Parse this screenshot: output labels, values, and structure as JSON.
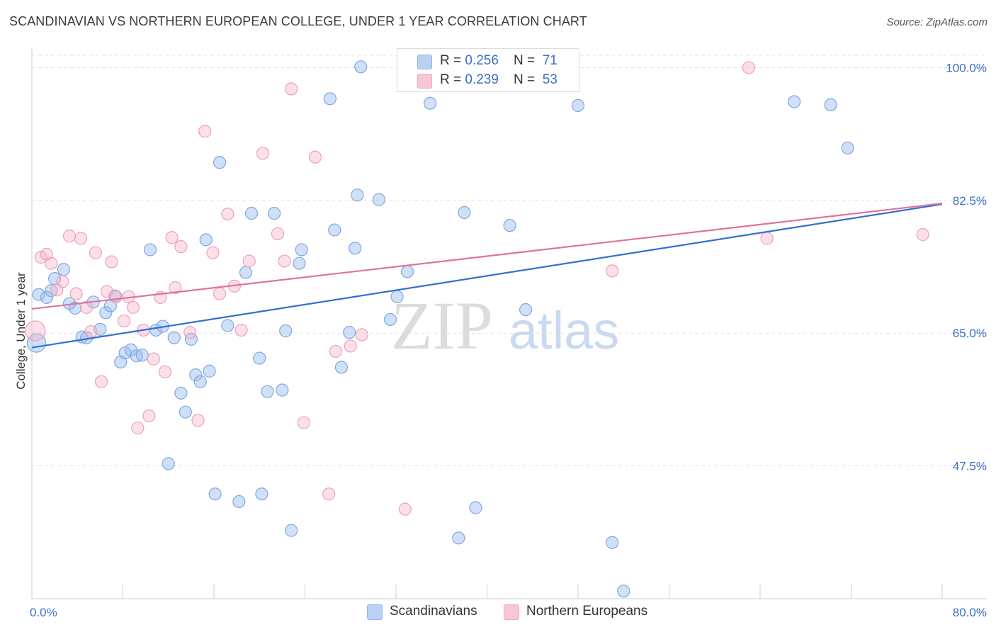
{
  "title": "SCANDINAVIAN VS NORTHERN EUROPEAN COLLEGE, UNDER 1 YEAR CORRELATION CHART",
  "source": "Source: ZipAtlas.com",
  "watermark": {
    "zip": "ZIP",
    "atlas": "atlas"
  },
  "legend": {
    "rows": [
      {
        "r_label": "R = ",
        "r_value": "0.256",
        "n_label": "N = ",
        "n_value": "71"
      },
      {
        "r_label": "R = ",
        "r_value": "0.239",
        "n_label": "N = ",
        "n_value": "53"
      }
    ]
  },
  "chart_data": {
    "type": "scatter",
    "title": "SCANDINAVIAN VS NORTHERN EUROPEAN COLLEGE, UNDER 1 YEAR CORRELATION CHART",
    "xlabel": "",
    "ylabel": "College, Under 1 year",
    "xlim": [
      0,
      80
    ],
    "ylim": [
      30,
      102
    ],
    "x_tick_labels": [
      "0.0%",
      "80.0%"
    ],
    "y_ticks": [
      47.5,
      65.0,
      82.5,
      100.0
    ],
    "y_tick_labels": [
      "47.5%",
      "65.0%",
      "82.5%",
      "100.0%"
    ],
    "grid": true,
    "legend_position": "bottom",
    "colors": {
      "Scandinavians": "#8fb6ec",
      "Northern Europeans": "#f2a9bf",
      "Scandinavians_line": "#3270d0",
      "Northern Europeans_line": "#e0739b",
      "axis_text": "#3b6fc7"
    },
    "series": [
      {
        "name": "Scandinavians",
        "trend": {
          "x0": 0,
          "y0": 63.1,
          "x1": 80,
          "y1": 82.0
        },
        "points": [
          [
            0.6,
            70.1
          ],
          [
            1.3,
            69.7
          ],
          [
            1.7,
            70.6
          ],
          [
            2.0,
            72.2
          ],
          [
            2.8,
            73.4
          ],
          [
            3.3,
            68.9
          ],
          [
            3.8,
            68.3
          ],
          [
            4.4,
            64.5
          ],
          [
            4.8,
            64.4
          ],
          [
            5.4,
            69.1
          ],
          [
            6.0,
            65.5
          ],
          [
            6.5,
            67.7
          ],
          [
            6.9,
            68.6
          ],
          [
            7.3,
            69.9
          ],
          [
            7.8,
            61.2
          ],
          [
            8.2,
            62.4
          ],
          [
            8.7,
            62.8
          ],
          [
            9.2,
            62.0
          ],
          [
            9.7,
            62.1
          ],
          [
            10.4,
            76.0
          ],
          [
            10.9,
            65.4
          ],
          [
            11.5,
            65.9
          ],
          [
            12.0,
            47.8
          ],
          [
            12.5,
            64.4
          ],
          [
            13.1,
            57.1
          ],
          [
            13.5,
            54.6
          ],
          [
            14.0,
            64.2
          ],
          [
            14.4,
            59.5
          ],
          [
            14.8,
            58.6
          ],
          [
            15.3,
            77.3
          ],
          [
            15.6,
            60.0
          ],
          [
            16.1,
            43.8
          ],
          [
            16.5,
            87.5
          ],
          [
            17.2,
            66.0
          ],
          [
            18.2,
            42.8
          ],
          [
            18.8,
            73.0
          ],
          [
            19.3,
            80.8
          ],
          [
            20.0,
            61.7
          ],
          [
            20.2,
            43.8
          ],
          [
            20.7,
            57.3
          ],
          [
            21.3,
            80.8
          ],
          [
            22.0,
            57.5
          ],
          [
            22.3,
            65.3
          ],
          [
            22.8,
            39.0
          ],
          [
            23.5,
            74.2
          ],
          [
            23.7,
            76.0
          ],
          [
            26.2,
            95.9
          ],
          [
            26.6,
            78.6
          ],
          [
            27.2,
            60.5
          ],
          [
            27.9,
            65.1
          ],
          [
            28.4,
            76.2
          ],
          [
            28.6,
            83.2
          ],
          [
            28.9,
            100.1
          ],
          [
            30.5,
            82.6
          ],
          [
            31.5,
            66.8
          ],
          [
            32.1,
            69.8
          ],
          [
            33.0,
            73.1
          ],
          [
            35.0,
            95.3
          ],
          [
            37.5,
            38.0
          ],
          [
            38.0,
            80.9
          ],
          [
            39.0,
            42.0
          ],
          [
            42.0,
            79.2
          ],
          [
            43.4,
            68.1
          ],
          [
            47.0,
            100.1
          ],
          [
            48.0,
            95.0
          ],
          [
            51.0,
            37.4
          ],
          [
            52.0,
            31.0
          ],
          [
            67.0,
            95.5
          ],
          [
            70.2,
            95.1
          ],
          [
            71.7,
            89.4
          ],
          [
            0.4,
            63.7
          ]
        ]
      },
      {
        "name": "Northern Europeans",
        "trend": {
          "x0": 0,
          "y0": 68.2,
          "x1": 80,
          "y1": 82.1
        },
        "points": [
          [
            0.3,
            65.3
          ],
          [
            0.8,
            75.0
          ],
          [
            1.3,
            75.4
          ],
          [
            1.7,
            74.2
          ],
          [
            2.2,
            70.7
          ],
          [
            2.7,
            71.8
          ],
          [
            3.3,
            77.8
          ],
          [
            3.9,
            70.2
          ],
          [
            4.3,
            77.5
          ],
          [
            4.8,
            68.4
          ],
          [
            5.2,
            65.2
          ],
          [
            5.6,
            75.6
          ],
          [
            6.1,
            58.6
          ],
          [
            6.6,
            70.5
          ],
          [
            7.0,
            74.4
          ],
          [
            7.4,
            69.8
          ],
          [
            8.1,
            66.6
          ],
          [
            8.5,
            69.8
          ],
          [
            8.9,
            68.4
          ],
          [
            9.3,
            52.5
          ],
          [
            9.8,
            65.4
          ],
          [
            10.3,
            54.1
          ],
          [
            10.7,
            61.6
          ],
          [
            11.3,
            69.7
          ],
          [
            11.7,
            59.9
          ],
          [
            12.3,
            77.6
          ],
          [
            12.6,
            71.0
          ],
          [
            13.1,
            76.4
          ],
          [
            13.9,
            65.1
          ],
          [
            14.6,
            53.5
          ],
          [
            15.2,
            91.6
          ],
          [
            15.9,
            75.6
          ],
          [
            16.5,
            70.2
          ],
          [
            17.2,
            80.7
          ],
          [
            17.8,
            71.2
          ],
          [
            18.4,
            65.4
          ],
          [
            19.1,
            74.5
          ],
          [
            20.3,
            88.7
          ],
          [
            21.6,
            78.1
          ],
          [
            22.2,
            74.5
          ],
          [
            22.8,
            97.2
          ],
          [
            23.9,
            53.2
          ],
          [
            24.9,
            88.2
          ],
          [
            26.1,
            43.8
          ],
          [
            26.7,
            62.6
          ],
          [
            28.0,
            63.3
          ],
          [
            29.0,
            64.8
          ],
          [
            32.8,
            41.8
          ],
          [
            41.0,
            100.1
          ],
          [
            51.0,
            73.2
          ],
          [
            63.0,
            100.0
          ],
          [
            64.6,
            77.5
          ],
          [
            78.3,
            78.0
          ]
        ]
      }
    ]
  },
  "bottom_legend": [
    {
      "label": "Scandinavians"
    },
    {
      "label": "Northern Europeans"
    }
  ]
}
